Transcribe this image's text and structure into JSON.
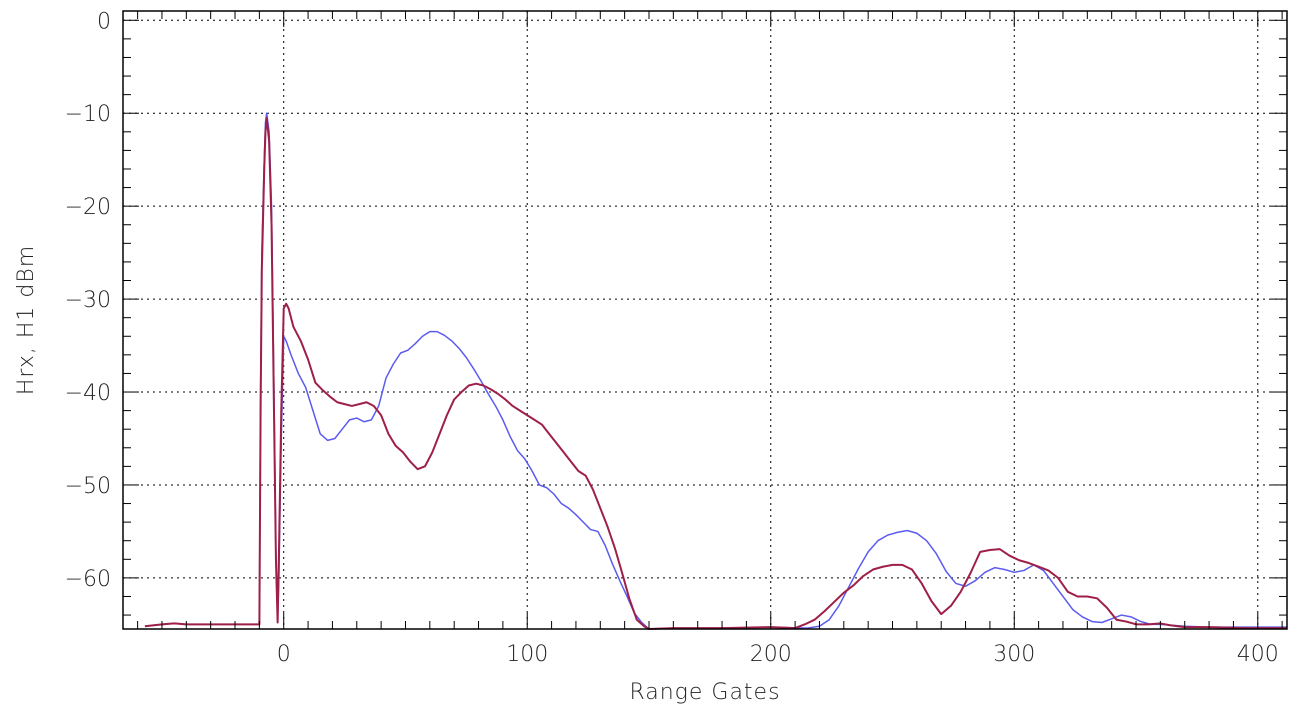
{
  "chart_data": {
    "type": "line",
    "title": "",
    "xlabel": "Range Gates",
    "ylabel": "Hrx, H1 dBm",
    "xlim": [
      -66,
      412
    ],
    "ylim": [
      -65.5,
      1
    ],
    "x_ticks": [
      0,
      100,
      200,
      300,
      400
    ],
    "x_tick_labels": [
      "0",
      "100",
      "200",
      "300",
      "400"
    ],
    "y_ticks": [
      0,
      -10,
      -20,
      -30,
      -40,
      -50,
      -60
    ],
    "y_tick_labels": [
      "0",
      "−10",
      "−20",
      "−30",
      "−40",
      "−50",
      "−60"
    ],
    "x_minor_step": 10,
    "y_minor_step": 2,
    "grid": true,
    "legend": "none",
    "series": [
      {
        "color": "#5b5bf0",
        "points": [
          [
            -57,
            -65.2
          ],
          [
            -50,
            -65.0
          ],
          [
            -45,
            -64.9
          ],
          [
            -40,
            -65.0
          ],
          [
            -30,
            -65.0
          ],
          [
            -20,
            -65.0
          ],
          [
            -15,
            -65.0
          ],
          [
            -10,
            -65.0
          ],
          [
            -9.5,
            -40
          ],
          [
            -9,
            -25
          ],
          [
            -8,
            -15
          ],
          [
            -7.5,
            -11
          ],
          [
            -7,
            -10
          ],
          [
            -6,
            -12
          ],
          [
            -5,
            -20
          ],
          [
            -4,
            -40
          ],
          [
            -3.2,
            -58
          ],
          [
            -2.5,
            -64.5
          ],
          [
            -2,
            -60
          ],
          [
            -1,
            -45
          ],
          [
            0,
            -34
          ],
          [
            1,
            -34.5
          ],
          [
            3,
            -36
          ],
          [
            6,
            -38
          ],
          [
            9,
            -39.5
          ],
          [
            12,
            -42
          ],
          [
            15,
            -44.5
          ],
          [
            18,
            -45.2
          ],
          [
            21,
            -45
          ],
          [
            24,
            -44
          ],
          [
            27,
            -43
          ],
          [
            30,
            -42.8
          ],
          [
            33,
            -43.2
          ],
          [
            36,
            -43
          ],
          [
            39,
            -41.5
          ],
          [
            42,
            -38.5
          ],
          [
            45,
            -37
          ],
          [
            48,
            -35.8
          ],
          [
            51,
            -35.5
          ],
          [
            54,
            -34.8
          ],
          [
            57,
            -34
          ],
          [
            60,
            -33.5
          ],
          [
            63,
            -33.5
          ],
          [
            66,
            -33.9
          ],
          [
            69,
            -34.5
          ],
          [
            72,
            -35.3
          ],
          [
            75,
            -36.3
          ],
          [
            78,
            -37.5
          ],
          [
            81,
            -38.8
          ],
          [
            84,
            -40.2
          ],
          [
            87,
            -41.5
          ],
          [
            90,
            -43
          ],
          [
            93,
            -44.8
          ],
          [
            96,
            -46.3
          ],
          [
            99,
            -47.2
          ],
          [
            102,
            -48.5
          ],
          [
            105,
            -50
          ],
          [
            108,
            -50.3
          ],
          [
            111,
            -51
          ],
          [
            114,
            -52
          ],
          [
            117,
            -52.5
          ],
          [
            120,
            -53.2
          ],
          [
            123,
            -54
          ],
          [
            126,
            -54.8
          ],
          [
            129,
            -55
          ],
          [
            132,
            -56.5
          ],
          [
            135,
            -58.5
          ],
          [
            138,
            -60.3
          ],
          [
            141,
            -62
          ],
          [
            144,
            -63.8
          ],
          [
            147,
            -64.8
          ],
          [
            150,
            -65.5
          ],
          [
            160,
            -65.4
          ],
          [
            180,
            -65.4
          ],
          [
            200,
            -65.3
          ],
          [
            215,
            -65.4
          ],
          [
            220,
            -65.2
          ],
          [
            224,
            -64.5
          ],
          [
            228,
            -63
          ],
          [
            232,
            -61
          ],
          [
            236,
            -59
          ],
          [
            240,
            -57.2
          ],
          [
            244,
            -56
          ],
          [
            248,
            -55.4
          ],
          [
            252,
            -55.1
          ],
          [
            256,
            -54.9
          ],
          [
            260,
            -55.2
          ],
          [
            264,
            -56
          ],
          [
            268,
            -57.4
          ],
          [
            272,
            -59.3
          ],
          [
            276,
            -60.6
          ],
          [
            280,
            -60.9
          ],
          [
            284,
            -60.3
          ],
          [
            288,
            -59.4
          ],
          [
            292,
            -58.9
          ],
          [
            296,
            -59.1
          ],
          [
            300,
            -59.4
          ],
          [
            304,
            -59.2
          ],
          [
            308,
            -58.6
          ],
          [
            312,
            -59.2
          ],
          [
            316,
            -60.6
          ],
          [
            320,
            -62
          ],
          [
            324,
            -63.4
          ],
          [
            328,
            -64.2
          ],
          [
            332,
            -64.7
          ],
          [
            336,
            -64.8
          ],
          [
            340,
            -64.4
          ],
          [
            344,
            -64.0
          ],
          [
            348,
            -64.2
          ],
          [
            352,
            -64.7
          ],
          [
            356,
            -65.0
          ],
          [
            360,
            -65.0
          ],
          [
            370,
            -65.2
          ],
          [
            380,
            -65.3
          ],
          [
            395,
            -65.3
          ],
          [
            412,
            -65.3
          ]
        ]
      },
      {
        "color": "#9e1f47",
        "points": [
          [
            -57,
            -65.2
          ],
          [
            -50,
            -65.0
          ],
          [
            -45,
            -64.9
          ],
          [
            -40,
            -65.0
          ],
          [
            -30,
            -65.0
          ],
          [
            -20,
            -65.0
          ],
          [
            -15,
            -65.0
          ],
          [
            -10,
            -65.0
          ],
          [
            -9.5,
            -42
          ],
          [
            -9,
            -27
          ],
          [
            -8,
            -16
          ],
          [
            -7.5,
            -12
          ],
          [
            -7,
            -10.5
          ],
          [
            -6,
            -13
          ],
          [
            -5,
            -22
          ],
          [
            -4,
            -42
          ],
          [
            -3.2,
            -58
          ],
          [
            -2.5,
            -64.8
          ],
          [
            -2,
            -58
          ],
          [
            -1,
            -42
          ],
          [
            0,
            -31
          ],
          [
            1,
            -30.5
          ],
          [
            2,
            -31
          ],
          [
            4,
            -33
          ],
          [
            7,
            -34.5
          ],
          [
            10,
            -36.5
          ],
          [
            13,
            -39
          ],
          [
            16,
            -39.8
          ],
          [
            19,
            -40.5
          ],
          [
            22,
            -41.1
          ],
          [
            25,
            -41.3
          ],
          [
            28,
            -41.5
          ],
          [
            31,
            -41.3
          ],
          [
            34,
            -41.1
          ],
          [
            37,
            -41.5
          ],
          [
            40,
            -42.5
          ],
          [
            43,
            -44.5
          ],
          [
            46,
            -45.8
          ],
          [
            49,
            -46.5
          ],
          [
            52,
            -47.5
          ],
          [
            55,
            -48.3
          ],
          [
            58,
            -48
          ],
          [
            61,
            -46.5
          ],
          [
            64,
            -44.5
          ],
          [
            67,
            -42.5
          ],
          [
            70,
            -40.8
          ],
          [
            73,
            -40
          ],
          [
            76,
            -39.3
          ],
          [
            79,
            -39.1
          ],
          [
            82,
            -39.3
          ],
          [
            85,
            -39.7
          ],
          [
            88,
            -40.2
          ],
          [
            91,
            -40.8
          ],
          [
            94,
            -41.5
          ],
          [
            97,
            -42
          ],
          [
            100,
            -42.5
          ],
          [
            103,
            -43
          ],
          [
            106,
            -43.5
          ],
          [
            109,
            -44.5
          ],
          [
            112,
            -45.5
          ],
          [
            115,
            -46.5
          ],
          [
            118,
            -47.5
          ],
          [
            121,
            -48.5
          ],
          [
            124,
            -49
          ],
          [
            127,
            -50.5
          ],
          [
            130,
            -52.5
          ],
          [
            133,
            -54.5
          ],
          [
            136,
            -56.8
          ],
          [
            139,
            -59.5
          ],
          [
            142,
            -62.3
          ],
          [
            145,
            -64.5
          ],
          [
            148,
            -65.2
          ],
          [
            150,
            -65.5
          ],
          [
            160,
            -65.4
          ],
          [
            180,
            -65.4
          ],
          [
            200,
            -65.3
          ],
          [
            210,
            -65.4
          ],
          [
            214,
            -65.0
          ],
          [
            218,
            -64.5
          ],
          [
            222,
            -63.6
          ],
          [
            226,
            -62.6
          ],
          [
            230,
            -61.6
          ],
          [
            234,
            -60.8
          ],
          [
            238,
            -59.8
          ],
          [
            242,
            -59.1
          ],
          [
            246,
            -58.8
          ],
          [
            250,
            -58.6
          ],
          [
            254,
            -58.6
          ],
          [
            258,
            -59.1
          ],
          [
            262,
            -60.6
          ],
          [
            266,
            -62.5
          ],
          [
            270,
            -63.9
          ],
          [
            274,
            -63
          ],
          [
            278,
            -61.5
          ],
          [
            282,
            -59.5
          ],
          [
            286,
            -57.2
          ],
          [
            290,
            -57.0
          ],
          [
            294,
            -56.9
          ],
          [
            298,
            -57.6
          ],
          [
            302,
            -58.1
          ],
          [
            306,
            -58.4
          ],
          [
            310,
            -58.8
          ],
          [
            314,
            -59.2
          ],
          [
            318,
            -60
          ],
          [
            322,
            -61.5
          ],
          [
            326,
            -62
          ],
          [
            330,
            -62
          ],
          [
            334,
            -62.2
          ],
          [
            338,
            -63.2
          ],
          [
            342,
            -64.5
          ],
          [
            346,
            -64.7
          ],
          [
            350,
            -65.0
          ],
          [
            355,
            -65.0
          ],
          [
            360,
            -64.9
          ],
          [
            364,
            -65.1
          ],
          [
            370,
            -65.3
          ],
          [
            380,
            -65.3
          ],
          [
            395,
            -65.4
          ],
          [
            412,
            -65.4
          ]
        ]
      }
    ]
  }
}
